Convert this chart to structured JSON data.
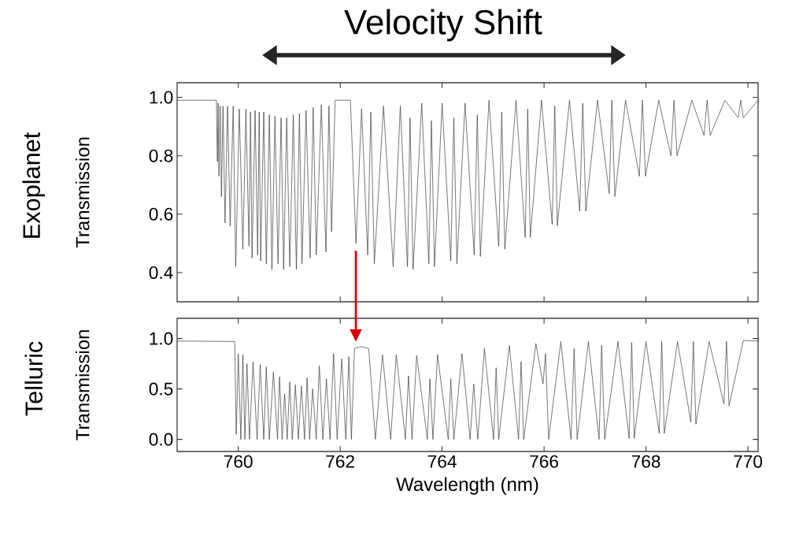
{
  "chart_data": [
    {
      "type": "line",
      "title": "Exoplanet",
      "ylabel": "Transmission",
      "annotations": [
        "Velocity Shift"
      ],
      "color": "#333333",
      "xlim": [
        758.8,
        770.2
      ],
      "ylim": [
        0.3,
        1.05
      ],
      "xticks": [
        760,
        762,
        764,
        766,
        768,
        770
      ],
      "yticks": [
        {
          "value": 0.4,
          "label": "0.4"
        },
        {
          "value": 0.6,
          "label": "0.6"
        },
        {
          "value": 0.8,
          "label": "0.8"
        },
        {
          "value": 1.0,
          "label": "1.0"
        }
      ],
      "tick_labels": "y",
      "x": [
        758.8,
        759.57,
        759.59,
        759.605,
        759.62,
        759.645,
        759.67,
        759.7,
        759.74,
        759.79,
        759.84,
        759.9,
        759.95,
        760.02,
        760.09,
        760.15,
        760.21,
        760.24,
        760.27,
        760.33,
        760.38,
        760.41,
        760.44,
        760.5,
        760.55,
        760.61,
        760.66,
        760.72,
        760.78,
        760.84,
        760.89,
        760.95,
        761.01,
        761.08,
        761.14,
        761.2,
        761.25,
        761.33,
        761.41,
        761.47,
        761.53,
        761.63,
        761.72,
        761.78,
        761.83,
        761.9,
        762.2,
        762.31,
        762.42,
        762.54,
        762.6,
        762.67,
        762.85,
        763.04,
        763.18,
        763.32,
        763.37,
        763.43,
        763.6,
        763.74,
        763.79,
        763.85,
        764.0,
        764.17,
        764.23,
        764.29,
        764.45,
        764.63,
        764.69,
        764.75,
        764.92,
        765.11,
        765.17,
        765.23,
        765.45,
        765.63,
        765.68,
        765.73,
        765.95,
        766.16,
        766.21,
        766.26,
        766.5,
        766.7,
        766.76,
        766.82,
        767.05,
        767.28,
        767.33,
        767.39,
        767.6,
        767.87,
        767.93,
        767.99,
        768.25,
        768.49,
        768.55,
        768.61,
        768.9,
        769.14,
        769.2,
        769.26,
        769.55,
        769.81,
        769.86,
        769.91,
        770.2
      ],
      "values": [
        0.99,
        0.99,
        0.78,
        0.98,
        0.73,
        0.97,
        0.66,
        0.97,
        0.57,
        0.97,
        0.56,
        0.97,
        0.42,
        0.96,
        0.48,
        0.96,
        0.49,
        0.95,
        0.45,
        0.955,
        0.46,
        0.95,
        0.44,
        0.95,
        0.43,
        0.94,
        0.41,
        0.935,
        0.43,
        0.93,
        0.41,
        0.93,
        0.42,
        0.94,
        0.41,
        0.945,
        0.43,
        0.955,
        0.45,
        0.965,
        0.46,
        0.975,
        0.47,
        0.97,
        0.54,
        0.99,
        0.99,
        0.5,
        0.96,
        0.46,
        0.95,
        0.43,
        0.97,
        0.42,
        0.97,
        0.42,
        0.93,
        0.41,
        0.98,
        0.43,
        0.92,
        0.42,
        0.98,
        0.44,
        0.93,
        0.43,
        0.98,
        0.46,
        0.94,
        0.455,
        0.99,
        0.49,
        0.95,
        0.48,
        0.99,
        0.52,
        0.96,
        0.52,
        0.99,
        0.565,
        0.97,
        0.56,
        0.99,
        0.61,
        0.98,
        0.61,
        0.99,
        0.67,
        0.99,
        0.66,
        0.99,
        0.73,
        0.99,
        0.73,
        0.99,
        0.8,
        0.99,
        0.8,
        0.99,
        0.87,
        0.99,
        0.87,
        0.99,
        0.93,
        0.99,
        0.93,
        0.99
      ]
    },
    {
      "type": "line",
      "title": "Telluric",
      "ylabel": "Transmission",
      "xlabel": "Wavelength (nm)",
      "color": "#333333",
      "xlim": [
        758.8,
        770.2
      ],
      "ylim": [
        -0.12,
        1.2
      ],
      "xticks": [
        760,
        762,
        764,
        766,
        768,
        770
      ],
      "yticks": [
        {
          "value": 0.0,
          "label": "0.0"
        },
        {
          "value": 0.5,
          "label": "0.5"
        },
        {
          "value": 1.0,
          "label": "1.0"
        }
      ],
      "x": [
        758.8,
        759.93,
        759.96,
        760.0,
        760.05,
        760.09,
        760.13,
        760.17,
        760.22,
        760.29,
        760.37,
        760.43,
        760.5,
        760.55,
        760.61,
        760.69,
        760.77,
        760.81,
        760.86,
        760.91,
        760.96,
        761.01,
        761.06,
        761.12,
        761.18,
        761.24,
        761.3,
        761.35,
        761.4,
        761.46,
        761.53,
        761.59,
        761.66,
        761.73,
        761.8,
        761.87,
        761.94,
        762.03,
        762.11,
        762.17,
        762.22,
        762.28,
        762.42,
        762.56,
        762.69,
        762.83,
        762.99,
        763.1,
        763.28,
        763.34,
        763.41,
        763.5,
        763.71,
        763.76,
        763.82,
        763.91,
        764.12,
        764.17,
        764.23,
        764.39,
        764.55,
        764.62,
        764.7,
        764.83,
        765.01,
        765.06,
        765.11,
        765.32,
        765.5,
        765.55,
        765.6,
        765.84,
        765.98,
        766.03,
        766.09,
        766.33,
        766.53,
        766.59,
        766.65,
        766.87,
        767.08,
        767.13,
        767.19,
        767.45,
        767.67,
        767.72,
        767.77,
        768.0,
        768.26,
        768.31,
        768.36,
        768.62,
        768.88,
        768.93,
        768.98,
        769.24,
        769.53,
        769.58,
        769.63,
        769.91,
        770.2
      ],
      "values": [
        0.975,
        0.97,
        0.05,
        0.85,
        0.0,
        0.84,
        0.0,
        0.75,
        0.0,
        0.77,
        0.0,
        0.74,
        0.0,
        0.72,
        0.0,
        0.67,
        0.0,
        0.62,
        0.0,
        0.45,
        0.0,
        0.57,
        0.0,
        0.54,
        0.0,
        0.53,
        0.0,
        0.61,
        0.0,
        0.5,
        0.0,
        0.73,
        0.0,
        0.6,
        0.0,
        0.85,
        0.0,
        0.8,
        0.0,
        0.82,
        0.0,
        0.9,
        0.92,
        0.9,
        0.0,
        0.84,
        0.0,
        0.84,
        0.0,
        0.63,
        0.0,
        0.83,
        0.0,
        0.6,
        0.0,
        0.84,
        0.0,
        0.6,
        0.0,
        0.85,
        0.0,
        0.55,
        0.0,
        0.9,
        0.0,
        0.71,
        0.0,
        0.93,
        0.0,
        0.77,
        0.0,
        0.95,
        0.55,
        0.85,
        0.0,
        0.97,
        0.0,
        0.9,
        0.0,
        0.97,
        0.0,
        0.93,
        0.0,
        0.97,
        0.01,
        0.96,
        0.01,
        0.97,
        0.06,
        0.97,
        0.06,
        0.97,
        0.17,
        0.97,
        0.15,
        0.97,
        0.35,
        0.97,
        0.33,
        0.98,
        0.975
      ]
    }
  ]
}
